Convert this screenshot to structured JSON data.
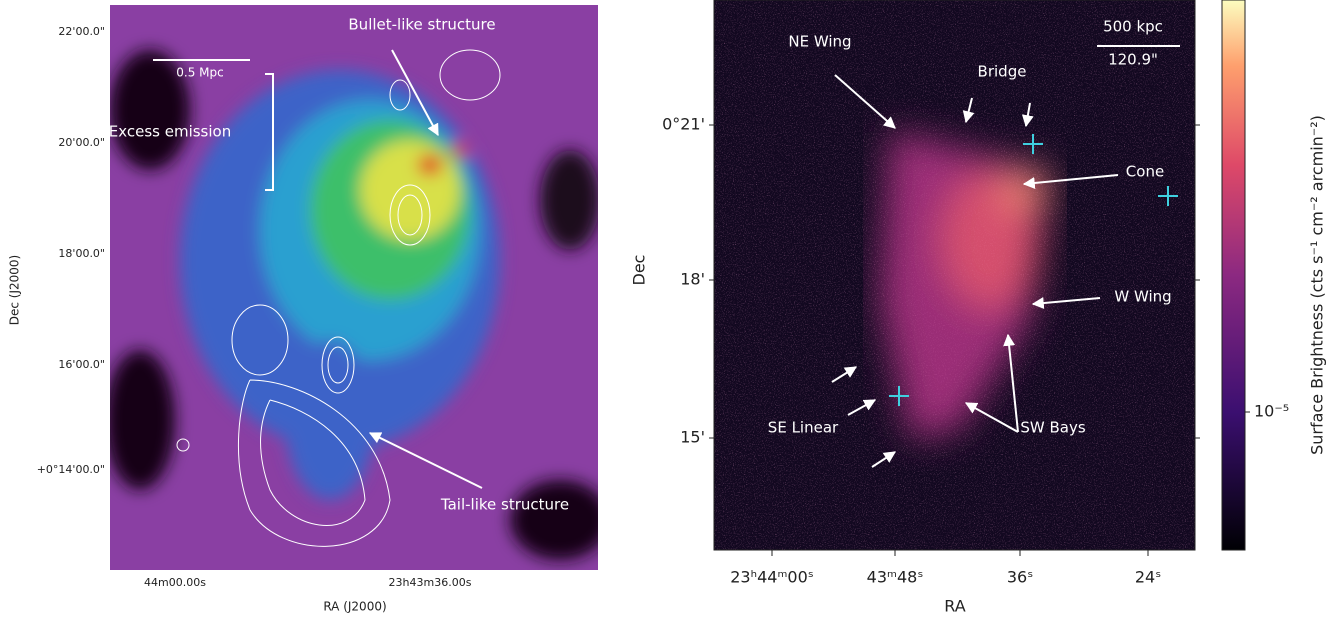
{
  "left_panel": {
    "y_axis_label": "Dec (J2000)",
    "x_axis_label": "RA (J2000)",
    "y_ticks": [
      "22'00.0\"",
      "20'00.0\"",
      "18'00.0\"",
      "16'00.0\"",
      "+0°14'00.0\""
    ],
    "x_ticks": [
      "44m00.00s",
      "23h43m36.00s"
    ],
    "scale_bar": "0.5 Mpc",
    "annotations": [
      "Bullet-like structure",
      "Excess emission",
      "Tail-like structure"
    ]
  },
  "right_panel": {
    "y_axis_label": "Dec",
    "x_axis_label": "RA",
    "y_ticks": [
      "0°21'",
      "18'",
      "15'"
    ],
    "x_ticks": [
      "23ʰ44ᵐ00ˢ",
      "43ᵐ48ˢ",
      "36ˢ",
      "24ˢ"
    ],
    "scale_bar": [
      "500 kpc",
      "120.9\""
    ],
    "annotations": [
      "NE Wing",
      "Bridge",
      "Cone",
      "W Wing",
      "SE Linear",
      "SW Bays"
    ],
    "colorbar_label": "Surface Brightness (cts s⁻¹ cm⁻² arcmin⁻²)",
    "colorbar_tick": "10⁻⁵"
  }
}
